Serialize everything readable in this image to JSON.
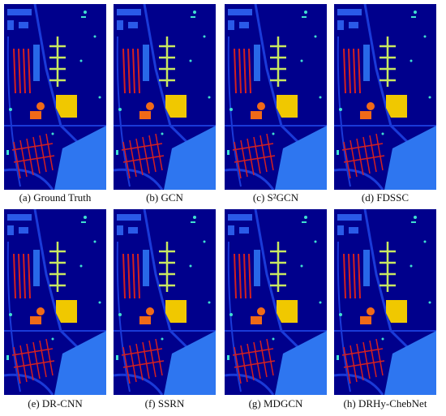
{
  "panels": [
    {
      "caption": "(a) Ground Truth"
    },
    {
      "caption": "(b) GCN"
    },
    {
      "caption": "(c) S²GCN"
    },
    {
      "caption": "(d) FDSSC"
    },
    {
      "caption": "(e) DR-CNN"
    },
    {
      "caption": "(f) SSRN"
    },
    {
      "caption": "(g) MDGCN"
    },
    {
      "caption": "(h) DRHy-ChebNet"
    }
  ]
}
